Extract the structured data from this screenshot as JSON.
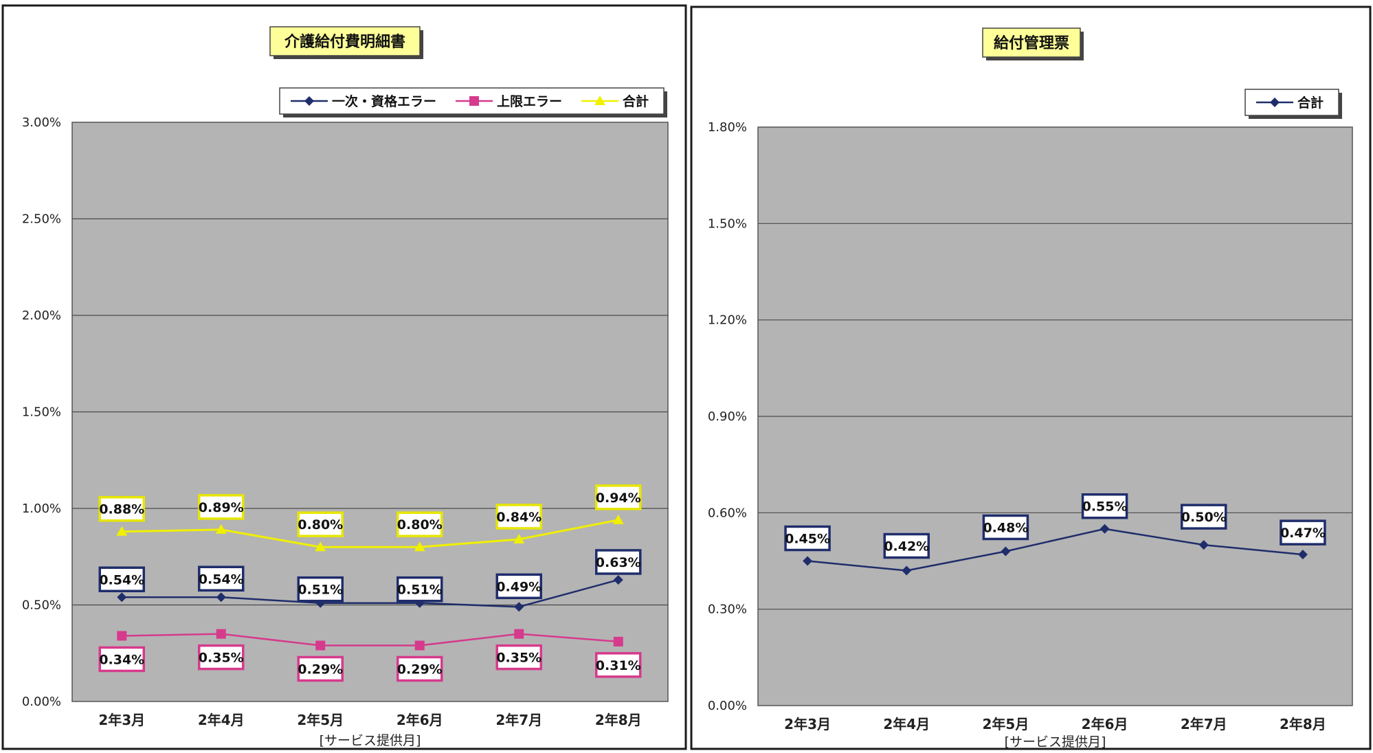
{
  "chart_data": [
    {
      "type": "line",
      "title": "介護給付費明細書",
      "xlabel": "[サービス提供月]",
      "ylabel": "",
      "categories": [
        "2年3月",
        "2年4月",
        "2年5月",
        "2年6月",
        "2年7月",
        "2年8月"
      ],
      "ylim": [
        0,
        0.03
      ],
      "yticks": [
        "0.00%",
        "0.50%",
        "1.00%",
        "1.50%",
        "2.00%",
        "2.50%",
        "3.00%"
      ],
      "grid": true,
      "legend_position": "top-right",
      "series": [
        {
          "name": "一次・資格エラー",
          "values": [
            0.0054,
            0.0054,
            0.0051,
            0.0051,
            0.0049,
            0.0063
          ],
          "labels": [
            "0.54%",
            "0.54%",
            "0.51%",
            "0.51%",
            "0.49%",
            "0.63%"
          ],
          "color": "#1f2d6b",
          "marker": "diamond"
        },
        {
          "name": "上限エラー",
          "values": [
            0.0034,
            0.0035,
            0.0029,
            0.0029,
            0.0035,
            0.0031
          ],
          "labels": [
            "0.34%",
            "0.35%",
            "0.29%",
            "0.29%",
            "0.35%",
            "0.31%"
          ],
          "color": "#d63a8c",
          "marker": "square"
        },
        {
          "name": "合計",
          "values": [
            0.0088,
            0.0089,
            0.008,
            0.008,
            0.0084,
            0.0094
          ],
          "labels": [
            "0.88%",
            "0.89%",
            "0.80%",
            "0.80%",
            "0.84%",
            "0.94%"
          ],
          "color": "#f0f000",
          "marker": "triangle"
        }
      ]
    },
    {
      "type": "line",
      "title": "給付管理票",
      "xlabel": "[サービス提供月]",
      "ylabel": "",
      "categories": [
        "2年3月",
        "2年4月",
        "2年5月",
        "2年6月",
        "2年7月",
        "2年8月"
      ],
      "ylim": [
        0,
        0.018
      ],
      "yticks": [
        "0.00%",
        "0.30%",
        "0.60%",
        "0.90%",
        "1.20%",
        "1.50%",
        "1.80%"
      ],
      "grid": true,
      "legend_position": "top-right",
      "series": [
        {
          "name": "合計",
          "values": [
            0.0045,
            0.0042,
            0.0048,
            0.0055,
            0.005,
            0.0047
          ],
          "labels": [
            "0.45%",
            "0.42%",
            "0.48%",
            "0.55%",
            "0.50%",
            "0.47%"
          ],
          "color": "#1f2d6b",
          "marker": "diamond"
        }
      ]
    }
  ]
}
